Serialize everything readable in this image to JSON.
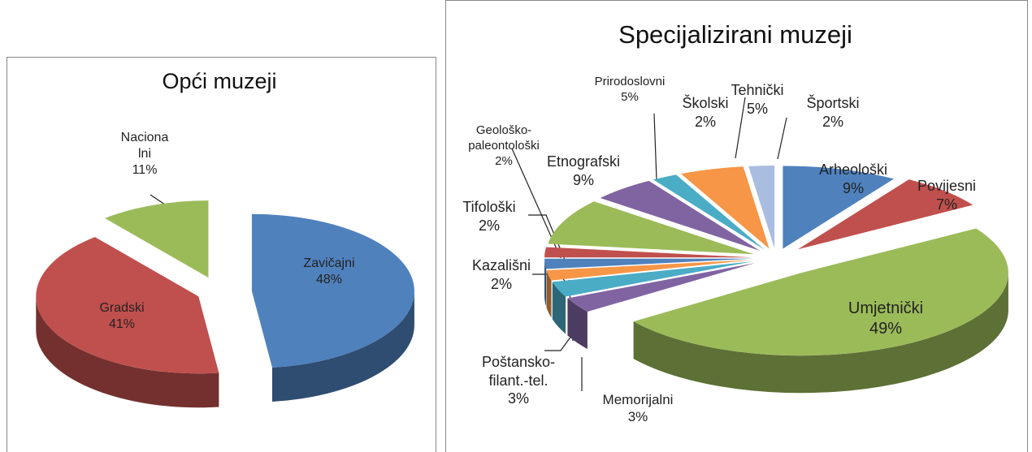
{
  "chart_data": [
    {
      "type": "pie",
      "title": "Opći muzeji",
      "categories": [
        "Zavičajni",
        "Gradski",
        "Nacionalni"
      ],
      "values": [
        48,
        41,
        11
      ],
      "value_labels": [
        "48%",
        "41%",
        "11%"
      ],
      "colors": [
        "#4f81bd",
        "#c0504d",
        "#9bbb59"
      ]
    },
    {
      "type": "pie",
      "title": "Specijalizirani muzeji",
      "categories": [
        "Arheološki",
        "Povijesni",
        "Umjetnički",
        "Memorijalni",
        "Poštansko-filant.-tel.",
        "Kazališni",
        "Tifološki",
        "Geološko-paleontološki",
        "Etnografski",
        "Prirodoslovni",
        "Školski",
        "Tehnički",
        "Športski"
      ],
      "values": [
        9,
        7,
        49,
        3,
        3,
        2,
        2,
        2,
        9,
        5,
        2,
        5,
        2
      ],
      "value_labels": [
        "9%",
        "7%",
        "49%",
        "3%",
        "3%",
        "2%",
        "2%",
        "2%",
        "9%",
        "5%",
        "2%",
        "5%",
        "2%"
      ],
      "colors": [
        "#4f81bd",
        "#c0504d",
        "#9bbb59",
        "#8064a2",
        "#4bacc6",
        "#f79646",
        "#4f81bd",
        "#c0504d",
        "#9bbb59",
        "#8064a2",
        "#4bacc6",
        "#f79646",
        "#a9bde0"
      ]
    }
  ]
}
